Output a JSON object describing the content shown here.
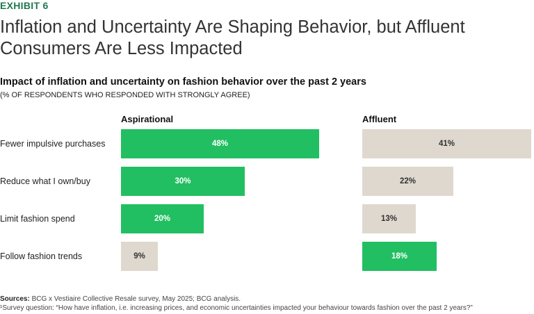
{
  "exhibit_label": "EXHIBIT 6",
  "title": "Inflation and Uncertainty Are Shaping Behavior, but Affluent Consumers Are Less Impacted",
  "colors": {
    "highlight": "#21bf61",
    "neutral": "#dfd8cf",
    "exhibit": "#1f7a4f"
  },
  "footer": {
    "sources_label": "Sources:",
    "sources_text": " BCG x Vestiaire Collective Resale survey, May 2025; BCG analysis.",
    "note": "¹Survey question: “How have inflation, i.e. increasing prices, and economic uncertainties impacted your behaviour towards fashion over the past 2 years?”"
  },
  "chart_data": {
    "type": "bar",
    "orientation": "horizontal",
    "title": "Impact of inflation and uncertainty on fashion behavior over the past 2 years",
    "subtitle": "(% OF RESPONDENTS WHO RESPONDED WITH STRONGLY AGREE)",
    "categories": [
      "Fewer impulsive purchases",
      "Reduce what I own/buy",
      "Limit fashion spend",
      "Follow fashion trends"
    ],
    "series": [
      {
        "name": "Aspirational",
        "values": [
          48,
          30,
          20,
          9
        ],
        "labels": [
          "48%",
          "30%",
          "20%",
          "9%"
        ],
        "highlight": [
          true,
          true,
          true,
          false
        ]
      },
      {
        "name": "Affluent",
        "values": [
          41,
          22,
          13,
          18
        ],
        "labels": [
          "41%",
          "22%",
          "13%",
          "18%"
        ],
        "highlight": [
          false,
          false,
          false,
          true
        ]
      }
    ],
    "unit": "%",
    "grid": false,
    "legend": "none"
  }
}
